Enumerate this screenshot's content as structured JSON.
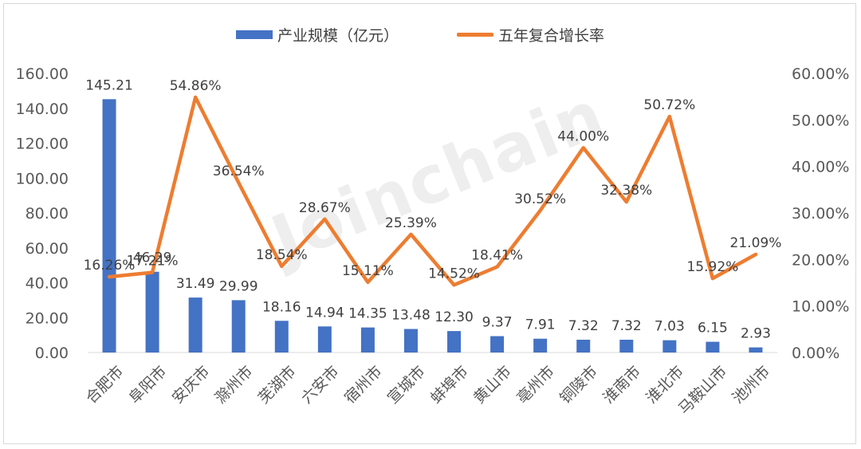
{
  "colors": {
    "bar": "#4472C4",
    "line": "#ED7D31",
    "text": "#404040",
    "axis": "#595959"
  },
  "watermark": "Joinchain",
  "chart_data": {
    "type": "bar",
    "categories": [
      "合肥市",
      "阜阳市",
      "安庆市",
      "滁州市",
      "芜湖市",
      "六安市",
      "宿州市",
      "宣城市",
      "蚌埠市",
      "黄山市",
      "亳州市",
      "铜陵市",
      "淮南市",
      "淮北市",
      "马鞍山市",
      "池州市"
    ],
    "series": [
      {
        "name": "产业规模（亿元）",
        "type": "bar",
        "axis": "left",
        "values": [
          145.21,
          46.29,
          31.49,
          29.99,
          18.16,
          14.94,
          14.35,
          13.48,
          12.3,
          9.37,
          7.91,
          7.32,
          7.32,
          7.03,
          6.15,
          2.93
        ],
        "labels": [
          "145.21",
          "46.29",
          "31.49",
          "29.99",
          "18.16",
          "14.94",
          "14.35",
          "13.48",
          "12.30",
          "9.37",
          "7.91",
          "7.32",
          "7.32",
          "7.03",
          "6.15",
          "2.93"
        ]
      },
      {
        "name": "五年复合增长率",
        "type": "line",
        "axis": "right",
        "values": [
          16.26,
          17.21,
          54.86,
          36.54,
          18.54,
          28.67,
          15.11,
          25.39,
          14.52,
          18.41,
          30.52,
          44.0,
          32.38,
          50.72,
          15.92,
          21.09
        ],
        "labels": [
          "16.26%",
          "17.21%",
          "54.86%",
          "36.54%",
          "18.54%",
          "28.67%",
          "15.11%",
          "25.39%",
          "14.52%",
          "18.41%",
          "30.52%",
          "44.00%",
          "32.38%",
          "50.72%",
          "15.92%",
          "21.09%"
        ]
      }
    ],
    "left_axis": {
      "ylim": [
        0,
        160
      ],
      "ticks": [
        "0.00",
        "20.00",
        "40.00",
        "60.00",
        "80.00",
        "100.00",
        "120.00",
        "140.00",
        "160.00"
      ]
    },
    "right_axis": {
      "ylim": [
        0,
        60
      ],
      "ticks": [
        "0.00%",
        "10.00%",
        "20.00%",
        "30.00%",
        "40.00%",
        "50.00%",
        "60.00%"
      ]
    },
    "legend": "top-center",
    "grid": false
  }
}
